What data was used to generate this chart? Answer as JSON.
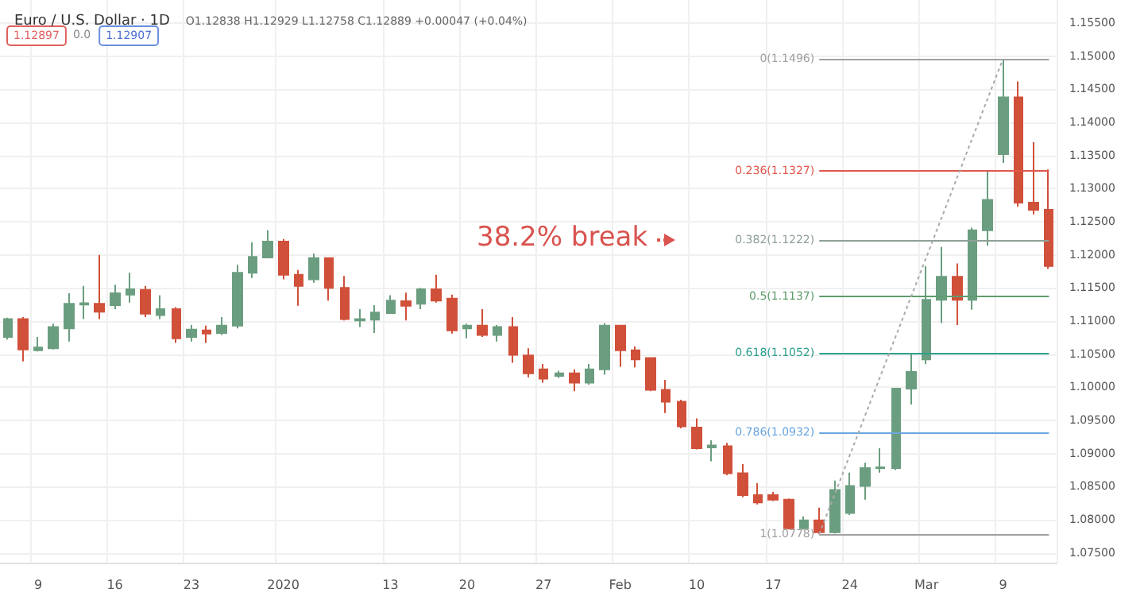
{
  "chart_data": {
    "type": "candlestick",
    "title": "Euro / U.S. Dollar · 1D",
    "subtitle": "O1.12838 H1.12929 L1.12758 C1.12889 +0.00047 (+0.04%)",
    "categories": [
      null,
      null,
      "9",
      null,
      null,
      null,
      null,
      "16",
      null,
      null,
      null,
      null,
      "23",
      null,
      null,
      null,
      null,
      null,
      "2020",
      null,
      null,
      null,
      null,
      null,
      null,
      "13",
      null,
      null,
      null,
      null,
      "20",
      null,
      null,
      null,
      null,
      "27",
      null,
      null,
      null,
      null,
      "Feb",
      null,
      null,
      null,
      null,
      "10",
      null,
      null,
      null,
      null,
      "17",
      null,
      null,
      null,
      null,
      "24",
      null,
      null,
      null,
      null,
      "Mar",
      null,
      null,
      null,
      null,
      "9",
      null,
      null,
      null
    ],
    "ohlc": [
      [
        1.1076,
        1.1105,
        1.1072,
        1.1103
      ],
      [
        1.1103,
        1.1106,
        1.1039,
        1.1057
      ],
      [
        1.1056,
        1.1076,
        1.1054,
        1.106
      ],
      [
        1.1059,
        1.1096,
        1.1057,
        1.1091
      ],
      [
        1.1089,
        1.1142,
        1.1069,
        1.1126
      ],
      [
        1.1125,
        1.1153,
        1.1103,
        1.1127
      ],
      [
        1.1126,
        1.12,
        1.1103,
        1.1114
      ],
      [
        1.1124,
        1.1155,
        1.1118,
        1.1142
      ],
      [
        1.114,
        1.1173,
        1.1128,
        1.1148
      ],
      [
        1.1147,
        1.1153,
        1.1106,
        1.1111
      ],
      [
        1.1109,
        1.1139,
        1.1103,
        1.1118
      ],
      [
        1.1118,
        1.1121,
        1.1067,
        1.1074
      ],
      [
        1.1076,
        1.1094,
        1.1069,
        1.1087
      ],
      [
        1.1086,
        1.1093,
        1.1067,
        1.1081
      ],
      [
        1.1082,
        1.1106,
        1.1079,
        1.1093
      ],
      [
        1.1093,
        1.1185,
        1.1089,
        1.1173
      ],
      [
        1.1173,
        1.1219,
        1.1165,
        1.1197
      ],
      [
        1.1196,
        1.1237,
        1.1195,
        1.122
      ],
      [
        1.122,
        1.1224,
        1.1163,
        1.117
      ],
      [
        1.117,
        1.1177,
        1.1123,
        1.1153
      ],
      [
        1.1163,
        1.1202,
        1.1158,
        1.1195
      ],
      [
        1.1195,
        1.1196,
        1.1131,
        1.115
      ],
      [
        1.115,
        1.1168,
        1.1101,
        1.1103
      ],
      [
        1.1101,
        1.1118,
        1.1091,
        1.1103
      ],
      [
        1.1102,
        1.1124,
        1.1082,
        1.1113
      ],
      [
        1.1112,
        1.1139,
        1.1111,
        1.1131
      ],
      [
        1.113,
        1.1143,
        1.1101,
        1.1123
      ],
      [
        1.1126,
        1.115,
        1.1118,
        1.1148
      ],
      [
        1.1148,
        1.117,
        1.1128,
        1.1131
      ],
      [
        1.1134,
        1.114,
        1.1081,
        1.1086
      ],
      [
        1.1089,
        1.1096,
        1.1074,
        1.1093
      ],
      [
        1.1093,
        1.1118,
        1.1076,
        1.1079
      ],
      [
        1.1079,
        1.1094,
        1.1069,
        1.1091
      ],
      [
        1.1091,
        1.1106,
        1.1037,
        1.1049
      ],
      [
        1.1048,
        1.1059,
        1.1015,
        1.1021
      ],
      [
        1.1027,
        1.1035,
        1.1007,
        1.1013
      ],
      [
        1.1017,
        1.1025,
        1.1014,
        1.1021
      ],
      [
        1.1021,
        1.1027,
        1.0994,
        1.1007
      ],
      [
        1.1007,
        1.1035,
        1.1004,
        1.1027
      ],
      [
        1.1027,
        1.1097,
        1.1019,
        1.1093
      ],
      [
        1.1093,
        1.1094,
        1.1031,
        1.1056
      ],
      [
        1.1056,
        1.1062,
        1.103,
        1.1042
      ],
      [
        1.1044,
        1.1045,
        1.0994,
        1.0996
      ],
      [
        1.0996,
        1.1011,
        1.0961,
        1.0978
      ],
      [
        1.0978,
        1.0981,
        1.0938,
        1.0941
      ],
      [
        1.0939,
        1.0953,
        1.0906,
        1.0908
      ],
      [
        1.0909,
        1.092,
        1.0888,
        1.0912
      ],
      [
        1.0911,
        1.0916,
        1.0867,
        1.087
      ],
      [
        1.087,
        1.0884,
        1.0834,
        1.0837
      ],
      [
        1.0837,
        1.0855,
        1.0823,
        1.0826
      ],
      [
        1.0837,
        1.0842,
        1.0828,
        1.083
      ],
      [
        1.083,
        1.0832,
        1.0785,
        1.0787
      ],
      [
        1.0787,
        1.0805,
        1.0785,
        1.0799
      ],
      [
        1.0799,
        1.0818,
        1.0778,
        1.0781
      ],
      [
        1.0781,
        1.0859,
        1.0779,
        1.0845
      ],
      [
        1.081,
        1.0871,
        1.0807,
        1.0851
      ],
      [
        1.0851,
        1.0886,
        1.083,
        1.0878
      ],
      [
        1.0878,
        1.0908,
        1.0871,
        1.0879
      ],
      [
        1.0878,
        1.0999,
        1.0875,
        1.0998
      ],
      [
        1.0998,
        1.105,
        1.0974,
        1.1023
      ],
      [
        1.1042,
        1.1183,
        1.1035,
        1.1132
      ],
      [
        1.1132,
        1.1212,
        1.1097,
        1.1167
      ],
      [
        1.1167,
        1.1187,
        1.1094,
        1.1132
      ],
      [
        1.1132,
        1.1241,
        1.1117,
        1.1237
      ],
      [
        1.1237,
        1.1327,
        1.1214,
        1.1283
      ],
      [
        1.1352,
        1.1496,
        1.1339,
        1.1438
      ],
      [
        1.1438,
        1.1462,
        1.1273,
        1.1279
      ],
      [
        1.1279,
        1.137,
        1.1261,
        1.1268
      ],
      [
        1.1268,
        1.1329,
        1.1179,
        1.1183
      ]
    ],
    "colors": [
      "#6b9e80",
      "#d0503a",
      "#6b9e80",
      "#6b9e80",
      "#6b9e80",
      "#6b9e80",
      "#d0503a",
      "#6b9e80",
      "#6b9e80",
      "#d0503a",
      "#6b9e80",
      "#d0503a",
      "#6b9e80",
      "#d0503a",
      "#6b9e80",
      "#6b9e80",
      "#6b9e80",
      "#6b9e80",
      "#d0503a",
      "#d0503a",
      "#6b9e80",
      "#d0503a",
      "#d0503a",
      "#6b9e80",
      "#6b9e80",
      "#6b9e80",
      "#d0503a",
      "#6b9e80",
      "#d0503a",
      "#d0503a",
      "#6b9e80",
      "#d0503a",
      "#6b9e80",
      "#d0503a",
      "#d0503a",
      "#d0503a",
      "#6b9e80",
      "#d0503a",
      "#6b9e80",
      "#6b9e80",
      "#d0503a",
      "#d0503a",
      "#d0503a",
      "#d0503a",
      "#d0503a",
      "#d0503a",
      "#6b9e80",
      "#d0503a",
      "#d0503a",
      "#d0503a",
      "#d0503a",
      "#d0503a",
      "#6b9e80",
      "#d0503a",
      "#6b9e80",
      "#6b9e80",
      "#6b9e80",
      "#6b9e80",
      "#6b9e80",
      "#6b9e80",
      "#6b9e80",
      "#6b9e80",
      "#d0503a",
      "#6b9e80",
      "#6b9e80",
      "#6b9e80",
      "#d0503a",
      "#d0503a",
      "#d0503a"
    ],
    "ylim": [
      1.0735,
      1.1585
    ],
    "yticks": [
      {
        "value": 1.075,
        "label": "1.07500"
      },
      {
        "value": 1.08,
        "label": "1.08000"
      },
      {
        "value": 1.085,
        "label": "1.08500"
      },
      {
        "value": 1.09,
        "label": "1.09000"
      },
      {
        "value": 1.095,
        "label": "1.09500"
      },
      {
        "value": 1.1,
        "label": "1.10000"
      },
      {
        "value": 1.105,
        "label": "1.10500"
      },
      {
        "value": 1.11,
        "label": "1.11000"
      },
      {
        "value": 1.115,
        "label": "1.11500"
      },
      {
        "value": 1.12,
        "label": "1.12000"
      },
      {
        "value": 1.125,
        "label": "1.12500"
      },
      {
        "value": 1.13,
        "label": "1.13000"
      },
      {
        "value": 1.135,
        "label": "1.13500"
      },
      {
        "value": 1.14,
        "label": "1.14000"
      },
      {
        "value": 1.145,
        "label": "1.14500"
      },
      {
        "value": 1.15,
        "label": "1.15000"
      },
      {
        "value": 1.155,
        "label": "1.15500"
      }
    ],
    "ref_lines": [
      {
        "axis": "y",
        "value": 1.1496,
        "label": "0(1.1496)",
        "color": "#a0a0a0"
      },
      {
        "axis": "y",
        "value": 1.1327,
        "label": "0.236(1.1327)",
        "color": "#e0574c"
      },
      {
        "axis": "y",
        "value": 1.1222,
        "label": "0.382(1.1222)",
        "color": "#8fa096"
      },
      {
        "axis": "y",
        "value": 1.1137,
        "label": "0.5(1.1137)",
        "color": "#5f9c6c"
      },
      {
        "axis": "y",
        "value": 1.1052,
        "label": "0.618(1.1052)",
        "color": "#2ea08f"
      },
      {
        "axis": "y",
        "value": 1.0932,
        "label": "0.786(1.0932)",
        "color": "#6aa6e0"
      },
      {
        "axis": "y",
        "value": 1.0778,
        "label": "1(1.0778)",
        "color": "#a0a0a0"
      }
    ],
    "annotations": [
      "1.12897",
      "0.0",
      "1.12907",
      "38.2% break"
    ],
    "grid": true
  }
}
